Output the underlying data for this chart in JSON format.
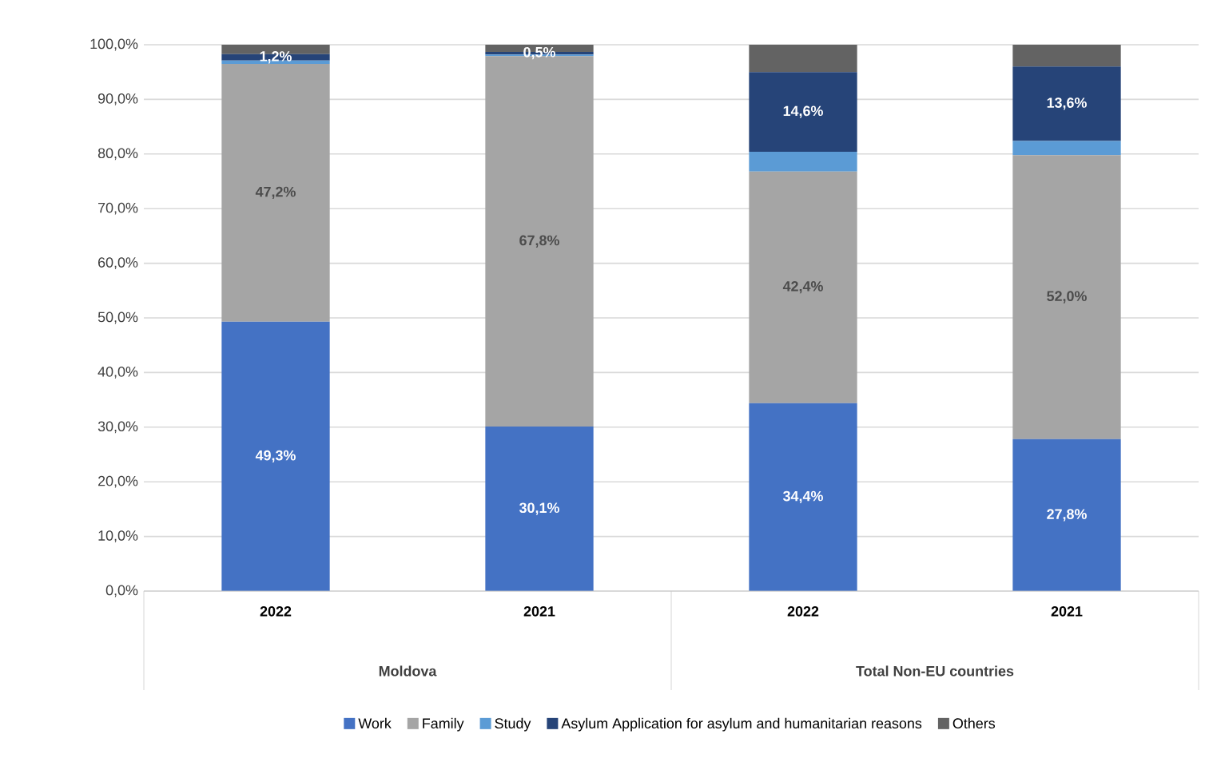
{
  "chart_data": {
    "type": "bar",
    "stacked": true,
    "categories": [
      "2022",
      "2021",
      "2022",
      "2021"
    ],
    "annotations": [
      "Moldova",
      "Total Non-EU countries"
    ],
    "ylim": [
      0,
      100
    ],
    "yticks": [
      {
        "value": 0,
        "label": "0,0%"
      },
      {
        "value": 10,
        "label": "10,0%"
      },
      {
        "value": 20,
        "label": "20,0%"
      },
      {
        "value": 30,
        "label": "30,0%"
      },
      {
        "value": 40,
        "label": "40,0%"
      },
      {
        "value": 50,
        "label": "50,0%"
      },
      {
        "value": 60,
        "label": "60,0%"
      },
      {
        "value": 70,
        "label": "70,0%"
      },
      {
        "value": 80,
        "label": "80,0%"
      },
      {
        "value": 90,
        "label": "90,0%"
      },
      {
        "value": 100,
        "label": "100,0%"
      }
    ],
    "grid": "y",
    "legend": "bottom",
    "series": [
      {
        "name": "Work",
        "color": "#4472c4",
        "values": [
          49.3,
          30.1,
          34.4,
          27.8
        ],
        "value_labels": [
          "49,3%",
          "30,1%",
          "34,4%",
          "27,8%"
        ]
      },
      {
        "name": "Family",
        "color": "#a5a5a5",
        "values": [
          47.2,
          67.8,
          42.4,
          52.0
        ],
        "value_labels": [
          "47,2%",
          "67,8%",
          "42,4%",
          "52,0%"
        ]
      },
      {
        "name": "Study",
        "color": "#5b9bd5",
        "values": [
          0.6,
          0.3,
          3.6,
          2.6
        ]
      },
      {
        "name": "Asylum Application for asylum and humanitarian reasons",
        "color": "#264478",
        "values": [
          1.2,
          0.5,
          14.6,
          13.6
        ],
        "value_labels": [
          "1,2%",
          "0,5%",
          "14,6%",
          "13,6%"
        ]
      },
      {
        "name": "Others",
        "color": "#636363",
        "values": [
          1.7,
          1.3,
          5.0,
          4.0
        ]
      }
    ]
  }
}
